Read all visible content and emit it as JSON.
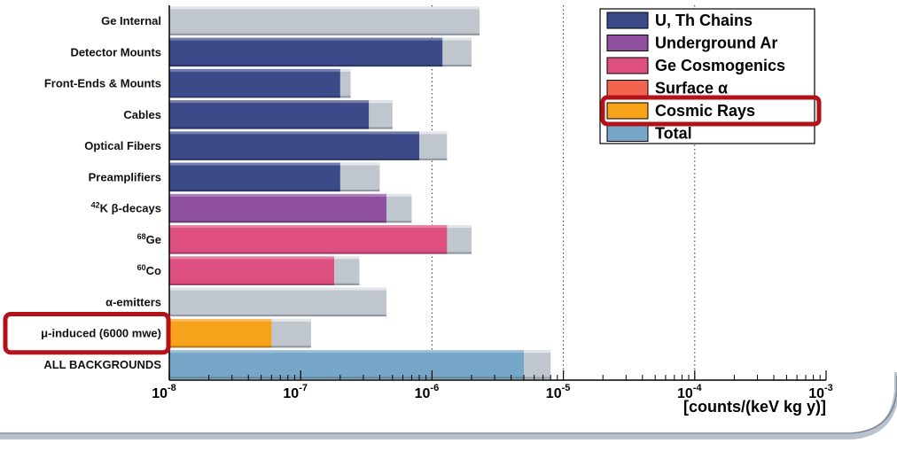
{
  "chart_data": {
    "type": "bar",
    "orientation": "horizontal",
    "x_scale": "log",
    "xlim": [
      1e-08,
      0.001
    ],
    "x_ticks": [
      {
        "value": 1e-08,
        "base": "10",
        "exp": "-8"
      },
      {
        "value": 1e-07,
        "base": "10",
        "exp": "-7"
      },
      {
        "value": 1e-06,
        "base": "10",
        "exp": "-6"
      },
      {
        "value": 1e-05,
        "base": "10",
        "exp": "-5"
      },
      {
        "value": 0.0001,
        "base": "10",
        "exp": "-4"
      },
      {
        "value": 0.001,
        "base": "10",
        "exp": "-3"
      }
    ],
    "xlabel": "[counts/(keV kg y)]",
    "grid_dotted_at": [
      1e-06,
      1e-05,
      0.0001
    ],
    "legend_placement": "top-right",
    "legend": [
      {
        "label": "U, Th Chains",
        "color": "#3d4a8a"
      },
      {
        "label": "Underground Ar",
        "color": "#8e4f9e"
      },
      {
        "label": "Ge Cosmogenics",
        "color": "#dd4f80"
      },
      {
        "label": "Surface α",
        "color": "#f26450"
      },
      {
        "label": "Cosmic Rays",
        "color": "#f7a21b",
        "highlighted": true
      },
      {
        "label": "Total",
        "color": "#76a7c9"
      }
    ],
    "categories": [
      {
        "pre": "",
        "sup": "",
        "post": "Ge Internal",
        "component": null,
        "value": null,
        "total": 2.3e-06
      },
      {
        "pre": "",
        "sup": "",
        "post": "Detector Mounts",
        "component": "U, Th Chains",
        "value": 1.2e-06,
        "total": 2e-06
      },
      {
        "pre": "",
        "sup": "",
        "post": "Front-Ends & Mounts",
        "component": "U, Th Chains",
        "value": 2e-07,
        "total": 2.4e-07
      },
      {
        "pre": "",
        "sup": "",
        "post": "Cables",
        "component": "U, Th Chains",
        "value": 3.3e-07,
        "total": 5e-07
      },
      {
        "pre": "",
        "sup": "",
        "post": "Optical Fibers",
        "component": "U, Th Chains",
        "value": 8e-07,
        "total": 1.3e-06
      },
      {
        "pre": "",
        "sup": "",
        "post": "Preamplifiers",
        "component": "U, Th Chains",
        "value": 2e-07,
        "total": 4e-07
      },
      {
        "pre": "",
        "sup": "42",
        "post": "K β-decays",
        "component": "Underground Ar",
        "value": 4.5e-07,
        "total": 7e-07
      },
      {
        "pre": "",
        "sup": "68",
        "post": "Ge",
        "component": "Ge Cosmogenics",
        "value": 1.3e-06,
        "total": 2e-06
      },
      {
        "pre": "",
        "sup": "60",
        "post": "Co",
        "component": "Ge Cosmogenics",
        "value": 1.8e-07,
        "total": 2.8e-07
      },
      {
        "pre": "",
        "sup": "",
        "post": "α-emitters",
        "component": null,
        "value": null,
        "total": 4.5e-07
      },
      {
        "pre": "μ",
        "sup": "",
        "post": "-induced (6000 mwe)",
        "component": "Cosmic Rays",
        "value": 6e-08,
        "total": 1.2e-07,
        "highlighted": true
      },
      {
        "pre": "",
        "sup": "",
        "post": "ALL BACKGROUNDS",
        "component": "Total",
        "value": 5e-06,
        "total": 8e-06
      }
    ],
    "total_bar_color": "#c0c6ce",
    "highlight_color": "#b31218"
  }
}
